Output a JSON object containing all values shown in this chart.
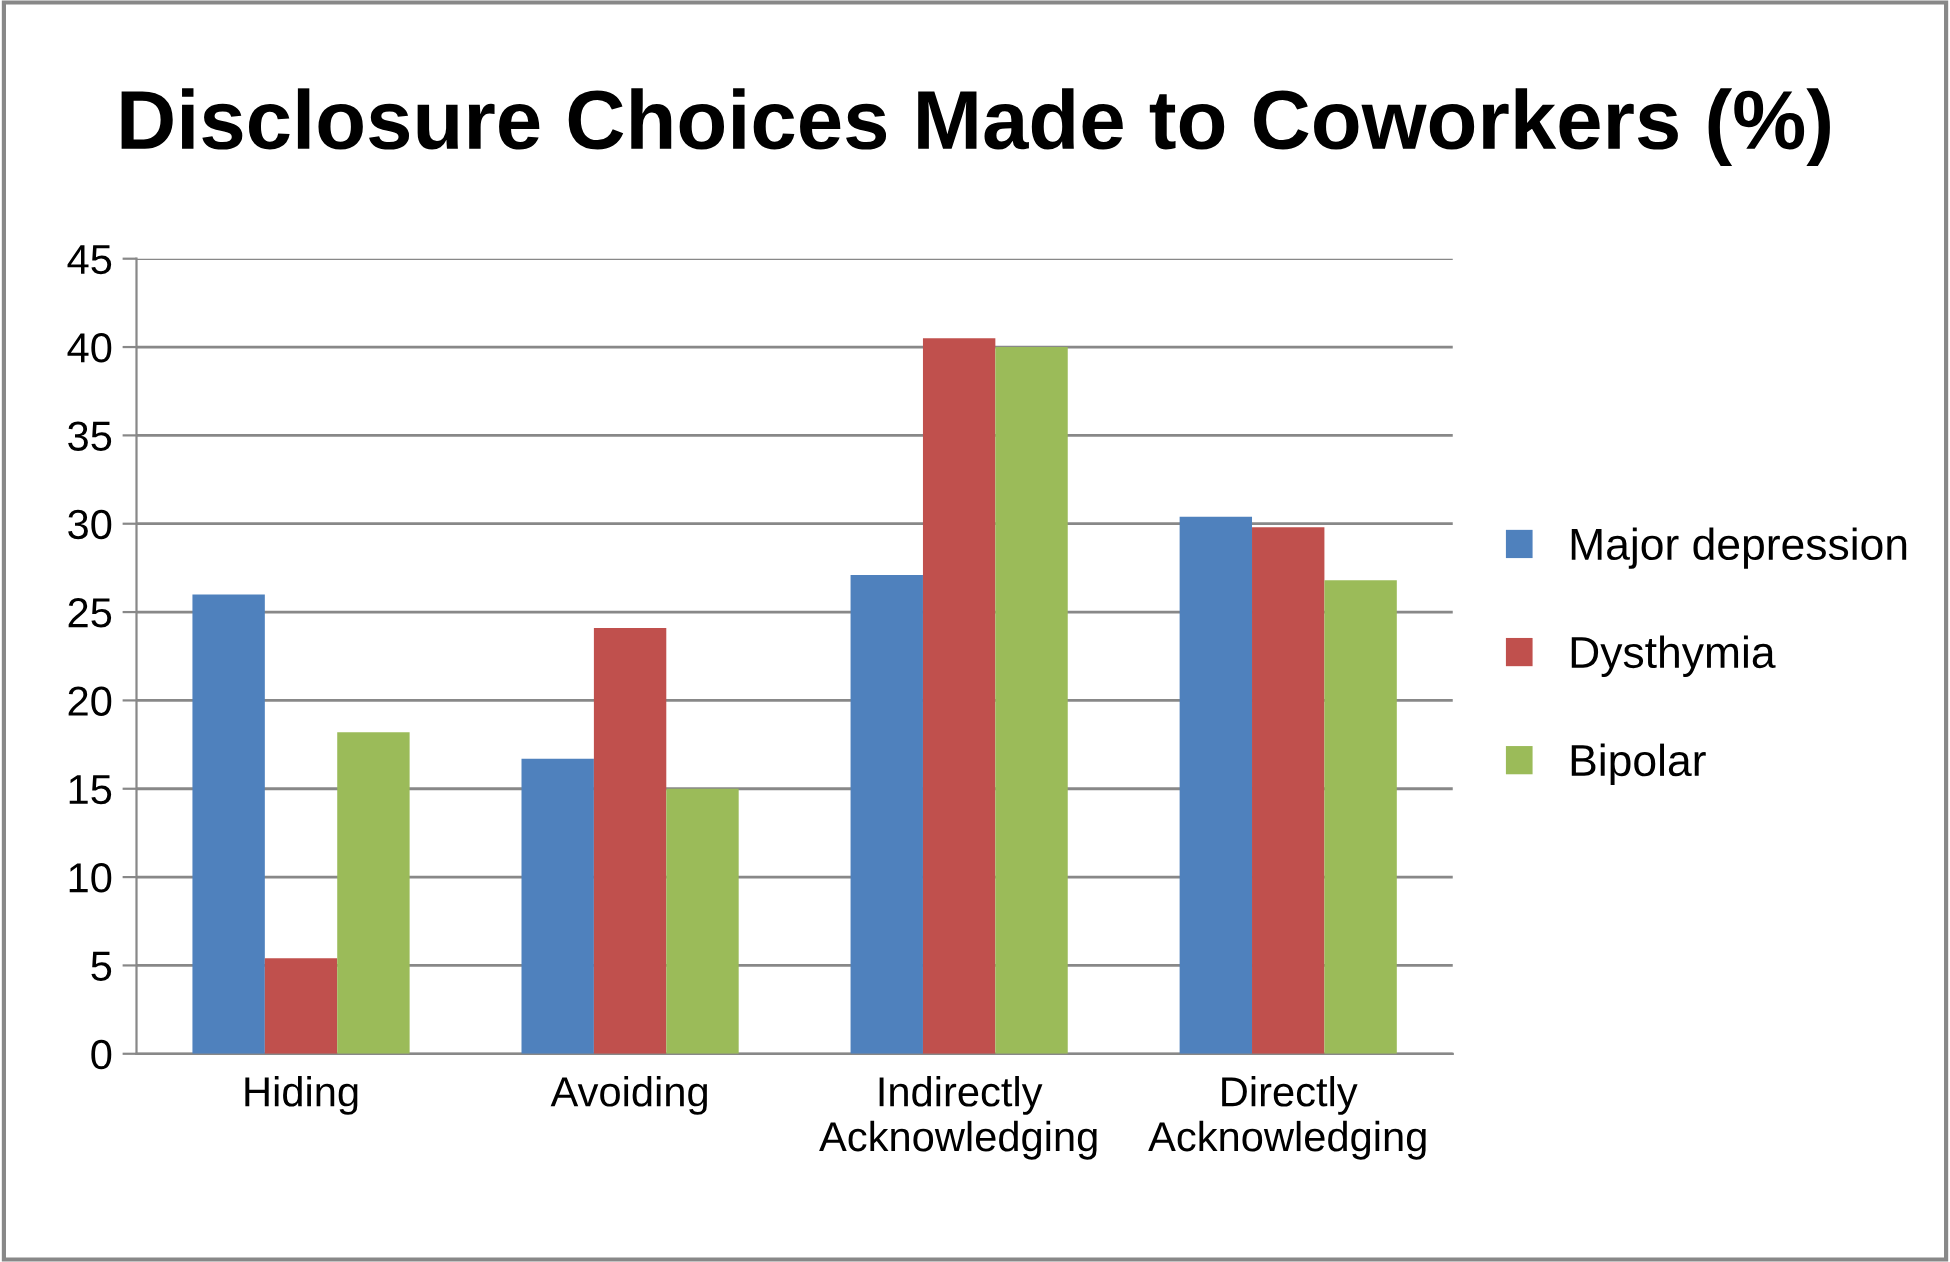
{
  "chart_data": {
    "type": "bar",
    "title": "Disclosure Choices Made to Coworkers (%)",
    "categories": [
      "Hiding",
      "Avoiding",
      "Indirectly\nAcknowledging",
      "Directly\nAcknowledging"
    ],
    "series": [
      {
        "name": "Major depression",
        "color": "#4f81bd",
        "values": [
          26,
          16.7,
          27.1,
          30.4
        ]
      },
      {
        "name": "Dysthymia",
        "color": "#c0504d",
        "values": [
          5.4,
          24.1,
          40.5,
          29.8
        ]
      },
      {
        "name": "Bipolar",
        "color": "#9bbb59",
        "values": [
          18.2,
          15,
          40,
          26.8
        ]
      }
    ],
    "ylim": [
      0,
      45
    ],
    "yticks": [
      0,
      5,
      10,
      15,
      20,
      25,
      30,
      35,
      40,
      45
    ],
    "grid": "y",
    "legend": "right"
  }
}
